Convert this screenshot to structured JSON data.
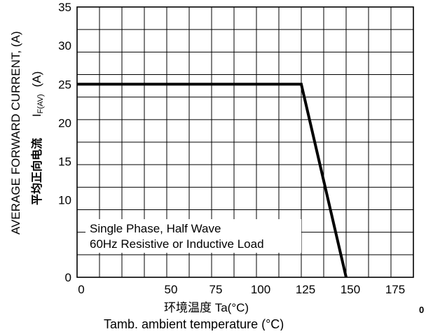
{
  "chart_data": {
    "type": "line",
    "xlabel_cn": "环境温度 Ta(°C)",
    "xlabel": "Tamb. ambient temperature (°C)",
    "ylabel": "AVERAGE FORWARD CURRENT, (A)",
    "ylabel_symbol": "I",
    "ylabel_subscript": "F(AV)",
    "ylabel_unit": "(A)",
    "ylabel_cn": "平均正向电流",
    "xlim": [
      0,
      187.5
    ],
    "ylim": [
      0,
      35
    ],
    "x_ticks": [
      "0",
      "50",
      "75",
      "100",
      "125",
      "150",
      "175"
    ],
    "x_tick_values": [
      0,
      50,
      75,
      100,
      125,
      150,
      175
    ],
    "y_ticks": [
      "0",
      "10",
      "15",
      "20",
      "25",
      "30",
      "35"
    ],
    "y_tick_values": [
      0,
      10,
      15,
      20,
      25,
      30,
      35
    ],
    "grid": true,
    "series": [
      {
        "x": [
          0,
          125,
          150
        ],
        "y": [
          25,
          25,
          0
        ],
        "color": "#000000"
      }
    ],
    "annotations": [
      "Single Phase, Half Wave",
      "60Hz Resistive or Inductive Load"
    ],
    "side_mark": "0"
  }
}
